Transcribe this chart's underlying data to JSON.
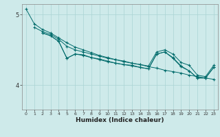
{
  "xlabel": "Humidex (Indice chaleur)",
  "bg_color": "#ceeaea",
  "line_color": "#006b6b",
  "grid_color": "#aad4d4",
  "xlim": [
    -0.5,
    23.5
  ],
  "ylim": [
    3.65,
    5.15
  ],
  "yticks": [
    4,
    5
  ],
  "xticks": [
    0,
    1,
    2,
    3,
    4,
    5,
    6,
    7,
    8,
    9,
    10,
    11,
    12,
    13,
    14,
    15,
    16,
    17,
    18,
    19,
    20,
    21,
    22,
    23
  ],
  "series": [
    {
      "x": [
        0,
        1,
        2,
        3,
        4,
        5,
        6,
        7,
        8,
        9,
        10,
        11,
        12,
        13,
        14,
        15,
        16,
        17,
        18,
        19,
        20,
        21,
        22,
        23
      ],
      "y": [
        5.08,
        4.87,
        4.79,
        4.74,
        4.67,
        4.6,
        4.54,
        4.5,
        4.46,
        4.42,
        4.39,
        4.36,
        4.34,
        4.31,
        4.29,
        4.26,
        4.24,
        4.21,
        4.19,
        4.17,
        4.14,
        4.12,
        4.1,
        4.08
      ]
    },
    {
      "x": [
        1,
        2,
        3,
        4,
        5,
        6,
        7,
        8,
        9,
        10,
        11,
        12,
        13,
        14,
        15,
        16,
        17,
        18,
        19,
        20,
        21,
        22,
        23
      ],
      "y": [
        4.82,
        4.76,
        4.72,
        4.65,
        4.55,
        4.5,
        4.47,
        4.44,
        4.41,
        4.38,
        4.36,
        4.33,
        4.31,
        4.29,
        4.27,
        4.47,
        4.5,
        4.44,
        4.32,
        4.28,
        4.14,
        4.12,
        4.28
      ]
    },
    {
      "x": [
        2,
        3,
        4,
        5,
        6,
        7,
        8,
        9,
        10,
        11,
        12,
        13,
        14,
        15,
        16,
        17,
        18,
        19,
        20,
        21,
        22,
        23
      ],
      "y": [
        4.74,
        4.7,
        4.62,
        4.38,
        4.44,
        4.42,
        4.39,
        4.36,
        4.33,
        4.31,
        4.29,
        4.27,
        4.25,
        4.23,
        4.44,
        4.47,
        4.39,
        4.27,
        4.2,
        4.1,
        4.1,
        4.25
      ]
    },
    {
      "x": [
        2,
        3,
        4,
        5,
        6,
        7,
        8,
        9,
        10,
        11,
        12,
        13,
        14,
        15,
        16,
        17,
        18,
        19,
        20,
        21,
        22,
        23
      ],
      "y": [
        4.74,
        4.7,
        4.62,
        4.38,
        4.44,
        4.43,
        4.39,
        4.37,
        4.34,
        4.31,
        4.29,
        4.28,
        4.25,
        4.23,
        4.44,
        4.47,
        4.38,
        4.26,
        4.2,
        4.1,
        4.1,
        4.25
      ]
    }
  ]
}
